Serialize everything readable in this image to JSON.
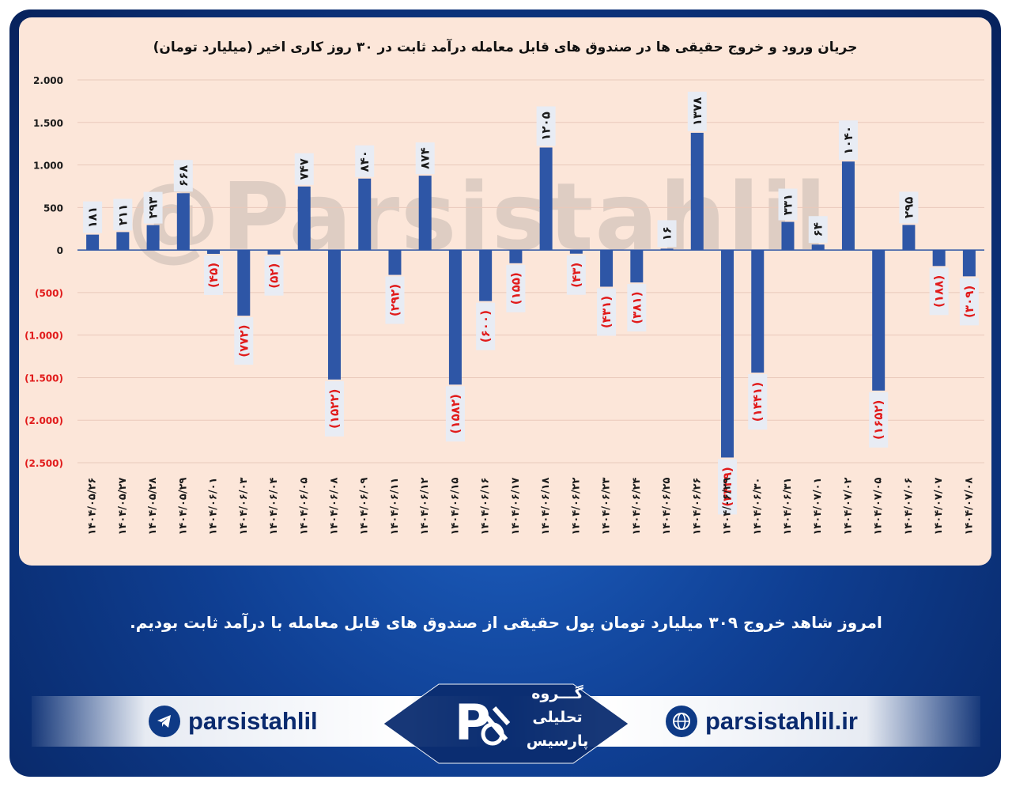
{
  "chart_data": {
    "type": "bar",
    "title": "جریان ورود و خروج حقیقی ها در صندوق های قابل معامله درآمد ثابت در ۳۰ روز کاری اخیر (میلیارد تومان)",
    "categories": [
      "۱۴۰۴/۰۵/۲۶",
      "۱۴۰۴/۰۵/۲۷",
      "۱۴۰۴/۰۵/۲۸",
      "۱۴۰۴/۰۵/۲۹",
      "۱۴۰۴/۰۶/۰۱",
      "۱۴۰۴/۰۶/۰۳",
      "۱۴۰۴/۰۶/۰۴",
      "۱۴۰۴/۰۶/۰۵",
      "۱۴۰۴/۰۶/۰۸",
      "۱۴۰۴/۰۶/۰۹",
      "۱۴۰۴/۰۶/۱۱",
      "۱۴۰۴/۰۶/۱۲",
      "۱۴۰۴/۰۶/۱۵",
      "۱۴۰۴/۰۶/۱۶",
      "۱۴۰۴/۰۶/۱۷",
      "۱۴۰۴/۰۶/۱۸",
      "۱۴۰۴/۰۶/۲۲",
      "۱۴۰۴/۰۶/۲۳",
      "۱۴۰۴/۰۶/۲۴",
      "۱۴۰۴/۰۶/۲۵",
      "۱۴۰۴/۰۶/۲۶",
      "۱۴۰۴/۰۶/۲۹",
      "۱۴۰۴/۰۶/۳۰",
      "۱۴۰۴/۰۶/۳۱",
      "۱۴۰۴/۰۷/۰۱",
      "۱۴۰۴/۰۷/۰۲",
      "۱۴۰۴/۰۷/۰۵",
      "۱۴۰۴/۰۷/۰۶",
      "۱۴۰۴/۰۷/۰۷",
      "۱۴۰۴/۰۷/۰۸"
    ],
    "values": [
      181,
      211,
      293,
      668,
      -45,
      -772,
      -52,
      747,
      -1522,
      840,
      -292,
      874,
      -1582,
      -600,
      -155,
      1205,
      -43,
      -431,
      -381,
      16,
      1378,
      -2439,
      -1441,
      331,
      64,
      1040,
      -1652,
      295,
      -188,
      -309
    ],
    "value_labels": [
      "۱۸۱",
      "۲۱۱",
      "۲۹۳",
      "۶۶۸",
      "(۴۵)",
      "(۷۷۲)",
      "(۵۲)",
      "۷۴۷",
      "(۱۵۲۲)",
      "۸۴۰",
      "(۲۹۲)",
      "۸۷۴",
      "(۱۵۸۲)",
      "(۶۰۰)",
      "(۱۵۵)",
      "۱۲۰۵",
      "(۴۳)",
      "(۴۳۱)",
      "(۳۸۱)",
      "۱۶",
      "۱۳۷۸",
      "(۲۴۳۹)",
      "(۱۴۴۱)",
      "۳۳۱",
      "۶۴",
      "۱۰۴۰",
      "(۱۶۵۲)",
      "۲۹۵",
      "(۱۸۸)",
      "(۳۰۹)"
    ],
    "y_ticks": [
      2000,
      1500,
      1000,
      500,
      0,
      -500,
      -1000,
      -1500,
      -2000,
      -2500
    ],
    "y_tick_labels": [
      "2.000",
      "1.500",
      "1.000",
      "500",
      "0",
      "(500)",
      "(1.000)",
      "(1.500)",
      "(2.000)",
      "(2.500)"
    ],
    "ylim": [
      -2500,
      2000
    ],
    "grid": true,
    "bar_color": "#2e56a6",
    "negative_label_color": "#e11b1b",
    "positive_label_color": "#1a1a1a"
  },
  "watermark": "@Parsistahlil",
  "caption": "امروز شاهد خروج ۳۰۹ میلیارد تومان پول حقیقی از صندوق های قابل معامله با درآمد ثابت بودیم.",
  "footer": {
    "telegram_handle": "parsistahlil",
    "website": "parsistahlil.ir",
    "logo_line1": "گـــروه",
    "logo_line2": "تحلیلی",
    "logo_line3": "پارسیس",
    "telegram_icon": "telegram-icon",
    "web_icon": "globe-icon"
  }
}
